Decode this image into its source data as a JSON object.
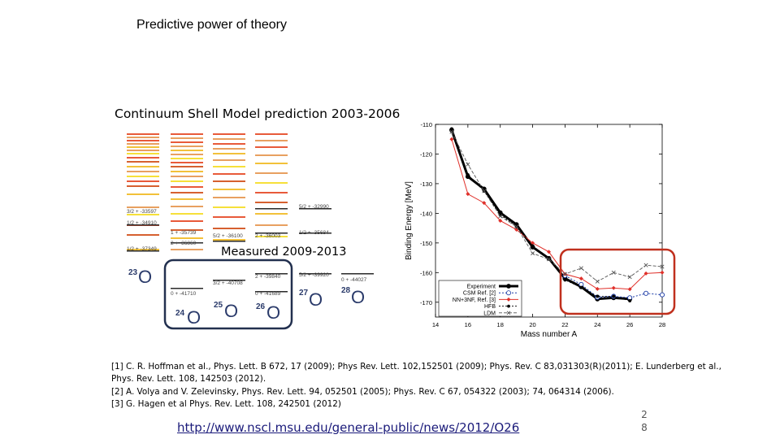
{
  "slide": {
    "title": "Predictive power of theory",
    "csm_caption": "Continuum Shell Model prediction 2003-2006",
    "measured_caption": "Measured 2009-2013",
    "url": "http://www.nscl.msu.edu/general-public/news/2012/O26",
    "slide_number": "2\n8",
    "references": [
      "[1] C. R. Hoffman et al., Phys. Lett. B 672, 17 (2009); Phys Rev. Lett. 102,152501 (2009); Phys. Rev. C 83,031303(R)(2011); E. Lunderberg et al.,",
      "Phys. Rev. Lett. 108, 142503 (2012).",
      "[2] A. Volya and V. Zelevinsky, Phys. Rev. Lett. 94, 052501 (2005); Phys. Rev. C 67, 054322 (2003); 74, 064314 (2006).",
      "[3] G. Hagen et al Phys. Rev. Lett. 108, 242501 (2012)"
    ]
  },
  "level_scheme": {
    "isotopes": [
      {
        "mass": "23",
        "symbol": "O"
      },
      {
        "mass": "24",
        "symbol": "O"
      },
      {
        "mass": "25",
        "symbol": "O"
      },
      {
        "mass": "26",
        "symbol": "O"
      },
      {
        "mass": "27",
        "symbol": "O"
      },
      {
        "mass": "28",
        "symbol": "O"
      }
    ],
    "level_labels": [
      "3/2 + -33597",
      "1/2 + -34910",
      "1/2 + -37349",
      "1 + -35739",
      "2 + -36860",
      "0 + -41710",
      "5/2 + -36100",
      "3/2 + -40708",
      "2 + -36003",
      "2 + -39840",
      "0 + -41689",
      "5/2 + -32990",
      "1/2 + -35684",
      "5/2 + -39920",
      "0 + -44027"
    ],
    "level_colors": [
      "#e8a060",
      "#e85a3a",
      "#f2c13a",
      "#f6e03a",
      "#d66030",
      "#2a2a2a"
    ]
  },
  "chart_data": {
    "type": "line",
    "xlabel": "Mass number A",
    "ylabel": "Binding Energy [MeV]",
    "xlim": [
      14,
      28
    ],
    "ylim": [
      -175,
      -110
    ],
    "xticks": [
      14,
      16,
      18,
      20,
      22,
      24,
      26,
      28
    ],
    "yticks": [
      -110,
      -120,
      -130,
      -140,
      -150,
      -160,
      -170
    ],
    "legend_position": "bottom-left",
    "series": [
      {
        "name": "Experiment",
        "color": "#000000",
        "x": [
          15,
          16,
          17,
          18,
          19,
          20,
          21,
          22,
          23,
          24,
          25,
          26
        ],
        "y": [
          -111.9,
          -127.6,
          -131.8,
          -139.8,
          -143.8,
          -151.4,
          -155.2,
          -162.0,
          -164.8,
          -168.9,
          -168.5,
          -168.9
        ]
      },
      {
        "name": "CSM Ref. [2]",
        "color": "#1a3aa6",
        "x": [
          22,
          23,
          24,
          25,
          26,
          27,
          28
        ],
        "y": [
          -161.0,
          -164.0,
          -168.3,
          -168.0,
          -168.5,
          -167.0,
          -167.5
        ]
      },
      {
        "name": "NN+3NF, Ref. [3]",
        "color": "#e0302a",
        "x": [
          15,
          16,
          17,
          18,
          19,
          20,
          21,
          22,
          23,
          24,
          25,
          26,
          27,
          28
        ],
        "y": [
          -115.0,
          -133.5,
          -136.5,
          -142.5,
          -145.5,
          -150.0,
          -153.0,
          -160.5,
          -162.0,
          -165.5,
          -165.2,
          -165.6,
          -160.3,
          -160.0
        ]
      },
      {
        "name": "HFB",
        "color": "#000000",
        "x": [
          15,
          16,
          17,
          18,
          19,
          20,
          21,
          22,
          23,
          24,
          25,
          26
        ],
        "y": [
          -111.5,
          -127.0,
          -132.5,
          -140.5,
          -144.5,
          -151.0,
          -155.0,
          -162.5,
          -165.0,
          -168.0,
          -168.0,
          -169.5
        ]
      },
      {
        "name": "LDM",
        "color": "#555555",
        "x": [
          15,
          16,
          17,
          18,
          19,
          20,
          21,
          22,
          23,
          24,
          25,
          26,
          27,
          28
        ],
        "y": [
          -112.5,
          -123.5,
          -132.5,
          -141.0,
          -144.5,
          -153.5,
          -155.5,
          -160.5,
          -158.5,
          -163.0,
          -160.0,
          -161.5,
          -157.5,
          -158.0
        ]
      }
    ]
  }
}
